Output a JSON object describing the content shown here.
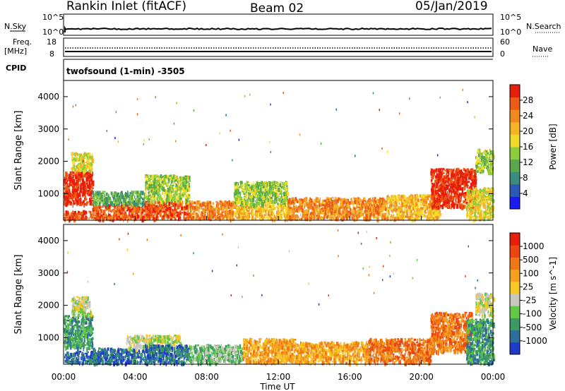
{
  "header": {
    "station": "Rankin Inlet (fitACF)",
    "beam": "Beam 02",
    "date": "05/Jan/2019"
  },
  "status_panels": {
    "nsky_label": "N.Sky",
    "nsky_ticks": [
      "10^5",
      "10^0"
    ],
    "nsearch_label": "N.Search",
    "nsearch_ticks": [
      "10^5",
      "10^0"
    ],
    "freq_label": "Freq.",
    "freq_unit": "[MHz]",
    "freq_ticks": [
      "18",
      "8"
    ],
    "nave_label": "Nave",
    "nave_ticks": [
      "60",
      "0"
    ],
    "cpid_label": "CPID",
    "cpid_text": "twofsound (1-min) -3505"
  },
  "chart_data": [
    {
      "type": "heatmap",
      "name": "power-panel",
      "ylabel": "Slant Range [km]",
      "xlabel": "",
      "x_ticks": [
        "00:00",
        "04:00",
        "08:00",
        "12:00",
        "16:00",
        "20:00",
        "00:00"
      ],
      "x_range_hours": [
        0,
        24
      ],
      "y_ticks": [
        1000,
        2000,
        3000,
        4000
      ],
      "y_range_km": [
        180,
        4500
      ],
      "colorbar": {
        "label": "Power [dB]",
        "ticks": [
          "4",
          "8",
          "12",
          "16",
          "20",
          "24",
          "28"
        ],
        "colors": [
          "#1b1bf0",
          "#2c58b8",
          "#3c8c7c",
          "#5aa84a",
          "#8ccd3c",
          "#f0dc28",
          "#f5b428",
          "#f08a1e",
          "#ec5a14",
          "#e61e0a"
        ]
      },
      "bands": [
        {
          "t0": 0.0,
          "t1": 1.6,
          "r0": 700,
          "r1": 1700,
          "level": 9
        },
        {
          "t0": 0.0,
          "t1": 2.0,
          "r0": 250,
          "r1": 500,
          "level": 8
        },
        {
          "t0": 0.4,
          "t1": 1.6,
          "r0": 1700,
          "r1": 2300,
          "level": 5
        },
        {
          "t0": 1.6,
          "t1": 4.8,
          "r0": 250,
          "r1": 700,
          "level": 8
        },
        {
          "t0": 1.6,
          "t1": 4.5,
          "r0": 700,
          "r1": 1100,
          "level": 3
        },
        {
          "t0": 4.5,
          "t1": 7.0,
          "r0": 250,
          "r1": 800,
          "level": 8
        },
        {
          "t0": 4.5,
          "t1": 7.0,
          "r0": 800,
          "r1": 1600,
          "level": 4
        },
        {
          "t0": 7.0,
          "t1": 9.5,
          "r0": 250,
          "r1": 800,
          "level": 7
        },
        {
          "t0": 9.5,
          "t1": 12.5,
          "r0": 250,
          "r1": 700,
          "level": 6
        },
        {
          "t0": 9.5,
          "t1": 12.5,
          "r0": 700,
          "r1": 1400,
          "level": 4
        },
        {
          "t0": 12.5,
          "t1": 18.0,
          "r0": 250,
          "r1": 900,
          "level": 7
        },
        {
          "t0": 18.0,
          "t1": 21.0,
          "r0": 250,
          "r1": 1000,
          "level": 6
        },
        {
          "t0": 20.5,
          "t1": 23.0,
          "r0": 600,
          "r1": 1800,
          "level": 9
        },
        {
          "t0": 22.5,
          "t1": 24.0,
          "r0": 250,
          "r1": 1200,
          "level": 5
        },
        {
          "t0": 23.0,
          "t1": 24.0,
          "r0": 1700,
          "r1": 2400,
          "level": 4
        }
      ]
    },
    {
      "type": "heatmap",
      "name": "velocity-panel",
      "ylabel": "Slant Range [km]",
      "xlabel": "Time UT",
      "x_ticks": [
        "00:00",
        "04:00",
        "08:00",
        "12:00",
        "16:00",
        "20:00",
        "00:00"
      ],
      "x_range_hours": [
        0,
        24
      ],
      "y_ticks": [
        1000,
        2000,
        3000,
        4000
      ],
      "y_range_km": [
        180,
        4500
      ],
      "colorbar": {
        "label": "Velocity [m s^-1]",
        "ticks": [
          "1000",
          "500",
          "100",
          "25",
          "-25",
          "-100",
          "-500",
          "-1000"
        ],
        "colors": [
          "#1e3cc8",
          "#2d6e9a",
          "#3c9a64",
          "#64c846",
          "#c8c8c0",
          "#f5c828",
          "#f5a01e",
          "#f07814",
          "#eb460f",
          "#e61e0a"
        ]
      },
      "bands": [
        {
          "t0": 0.0,
          "t1": 1.6,
          "r0": 700,
          "r1": 1700,
          "level": 2
        },
        {
          "t0": 0.0,
          "t1": 2.0,
          "r0": 250,
          "r1": 600,
          "level": 1
        },
        {
          "t0": 0.4,
          "t1": 1.5,
          "r0": 1700,
          "r1": 2300,
          "level": 4
        },
        {
          "t0": 1.6,
          "t1": 4.5,
          "r0": 250,
          "r1": 700,
          "level": 1
        },
        {
          "t0": 3.5,
          "t1": 6.5,
          "r0": 700,
          "r1": 1100,
          "level": 4
        },
        {
          "t0": 4.5,
          "t1": 7.0,
          "r0": 250,
          "r1": 800,
          "level": 1
        },
        {
          "t0": 7.0,
          "t1": 10.0,
          "r0": 250,
          "r1": 800,
          "level": 3
        },
        {
          "t0": 10.0,
          "t1": 13.0,
          "r0": 250,
          "r1": 1000,
          "level": 6
        },
        {
          "t0": 13.0,
          "t1": 17.0,
          "r0": 250,
          "r1": 900,
          "level": 6
        },
        {
          "t0": 17.0,
          "t1": 20.5,
          "r0": 250,
          "r1": 1000,
          "level": 7
        },
        {
          "t0": 20.5,
          "t1": 22.8,
          "r0": 600,
          "r1": 1800,
          "level": 7
        },
        {
          "t0": 22.5,
          "t1": 24.0,
          "r0": 250,
          "r1": 1600,
          "level": 2
        },
        {
          "t0": 23.0,
          "t1": 24.0,
          "r0": 1700,
          "r1": 2400,
          "level": 4
        }
      ]
    }
  ]
}
